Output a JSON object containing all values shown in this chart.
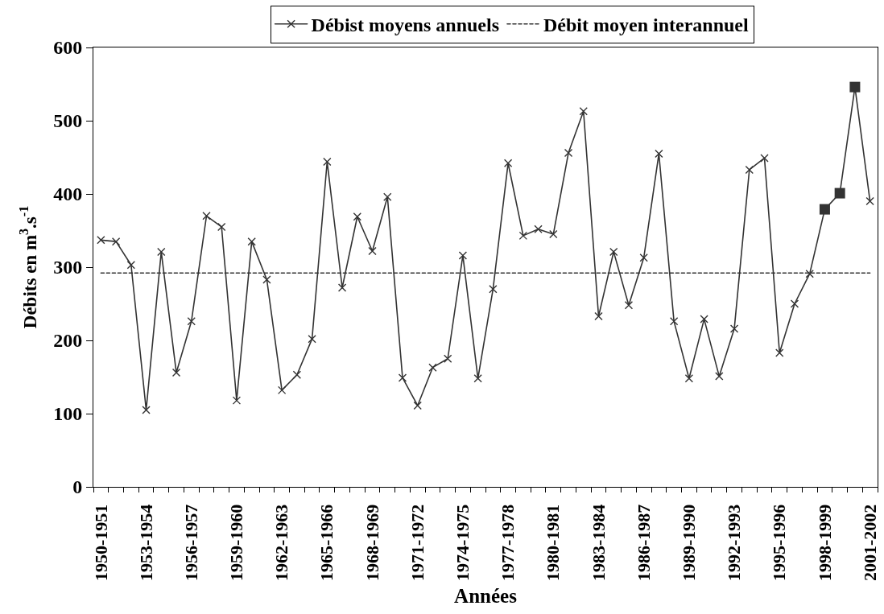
{
  "chart_data": {
    "type": "line",
    "xlabel": "Années",
    "ylabel": "Débits en m$^{3}$.s$^{-1}$",
    "categories": [
      "1950-1951",
      null,
      null,
      "1953-1954",
      null,
      null,
      "1956-1957",
      null,
      null,
      "1959-1960",
      null,
      null,
      "1962-1963",
      null,
      null,
      "1965-1966",
      null,
      null,
      "1968-1969",
      null,
      null,
      "1971-1972",
      null,
      null,
      "1974-1975",
      null,
      null,
      "1977-1978",
      null,
      null,
      "1980-1981",
      null,
      null,
      "1983-1984",
      null,
      null,
      "1986-1987",
      null,
      null,
      "1989-1990",
      null,
      null,
      "1992-1993",
      null,
      null,
      "1995-1996",
      null,
      null,
      "1998-1999",
      null,
      null,
      "2001-2002"
    ],
    "series": [
      {
        "name": "Débist moyens annuels",
        "color": "#333333",
        "values": [
          337,
          335,
          303,
          105,
          321,
          156,
          226,
          370,
          355,
          118,
          335,
          283,
          132,
          153,
          202,
          444,
          272,
          369,
          322,
          396,
          149,
          111,
          163,
          175,
          316,
          148,
          270,
          442,
          343,
          352,
          345,
          456,
          513,
          233,
          321,
          248,
          313,
          455,
          226,
          148,
          229,
          151,
          216,
          433,
          449,
          183,
          250,
          291,
          379,
          401,
          546,
          390
        ]
      },
      {
        "type": "scatter",
        "marker": "square",
        "color": "#333333",
        "values": [
          null,
          null,
          null,
          null,
          null,
          null,
          null,
          null,
          null,
          null,
          null,
          null,
          null,
          null,
          null,
          null,
          null,
          null,
          null,
          null,
          null,
          null,
          null,
          null,
          null,
          null,
          null,
          null,
          null,
          null,
          null,
          null,
          null,
          null,
          null,
          null,
          null,
          null,
          null,
          null,
          null,
          null,
          null,
          null,
          null,
          null,
          null,
          null,
          379,
          401,
          546,
          null
        ]
      }
    ],
    "ref_lines": [
      {
        "axis": "y",
        "value": 292,
        "label": "Débit moyen interannuel",
        "line_style": "dashed",
        "color": "#333333"
      }
    ],
    "ylim": [
      0,
      600
    ],
    "yticks": [
      0,
      100,
      200,
      300,
      400,
      500,
      600
    ],
    "legend": "top",
    "marker": "cross",
    "line_style": "solid"
  }
}
